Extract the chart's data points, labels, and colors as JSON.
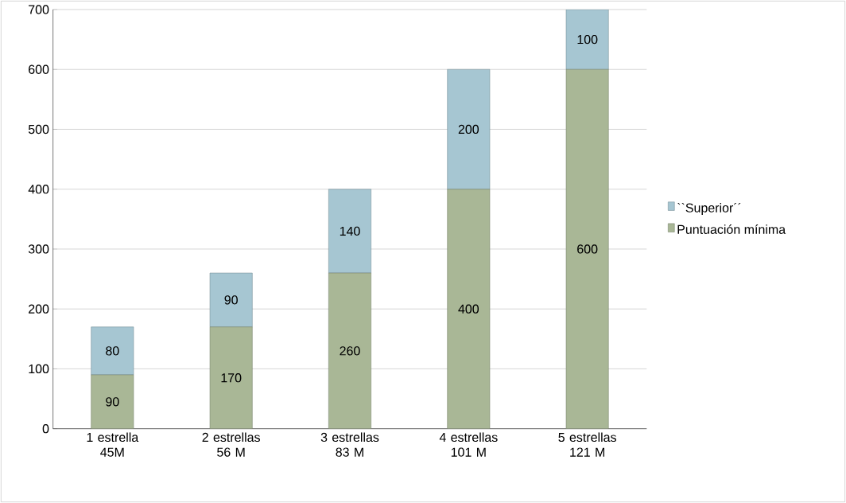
{
  "chart_data": {
    "type": "bar",
    "stacked": true,
    "categories": [
      "1 estrella 45M",
      "2 estrellas 56 M",
      "3 estrellas 83 M",
      "4 estrellas 101 M",
      "5 estrellas 121 M"
    ],
    "series": [
      {
        "name": "Puntuación mínima",
        "color": "#a9b796",
        "values": [
          90,
          170,
          260,
          400,
          600
        ]
      },
      {
        "name": "``Superior´´",
        "color": "#a6c6d2",
        "values": [
          80,
          90,
          140,
          200,
          100
        ]
      }
    ],
    "ylim": [
      0,
      700
    ],
    "yticks": [
      0,
      100,
      200,
      300,
      400,
      500,
      600,
      700
    ],
    "grid": "y",
    "legend": "right",
    "data_labels": true
  }
}
